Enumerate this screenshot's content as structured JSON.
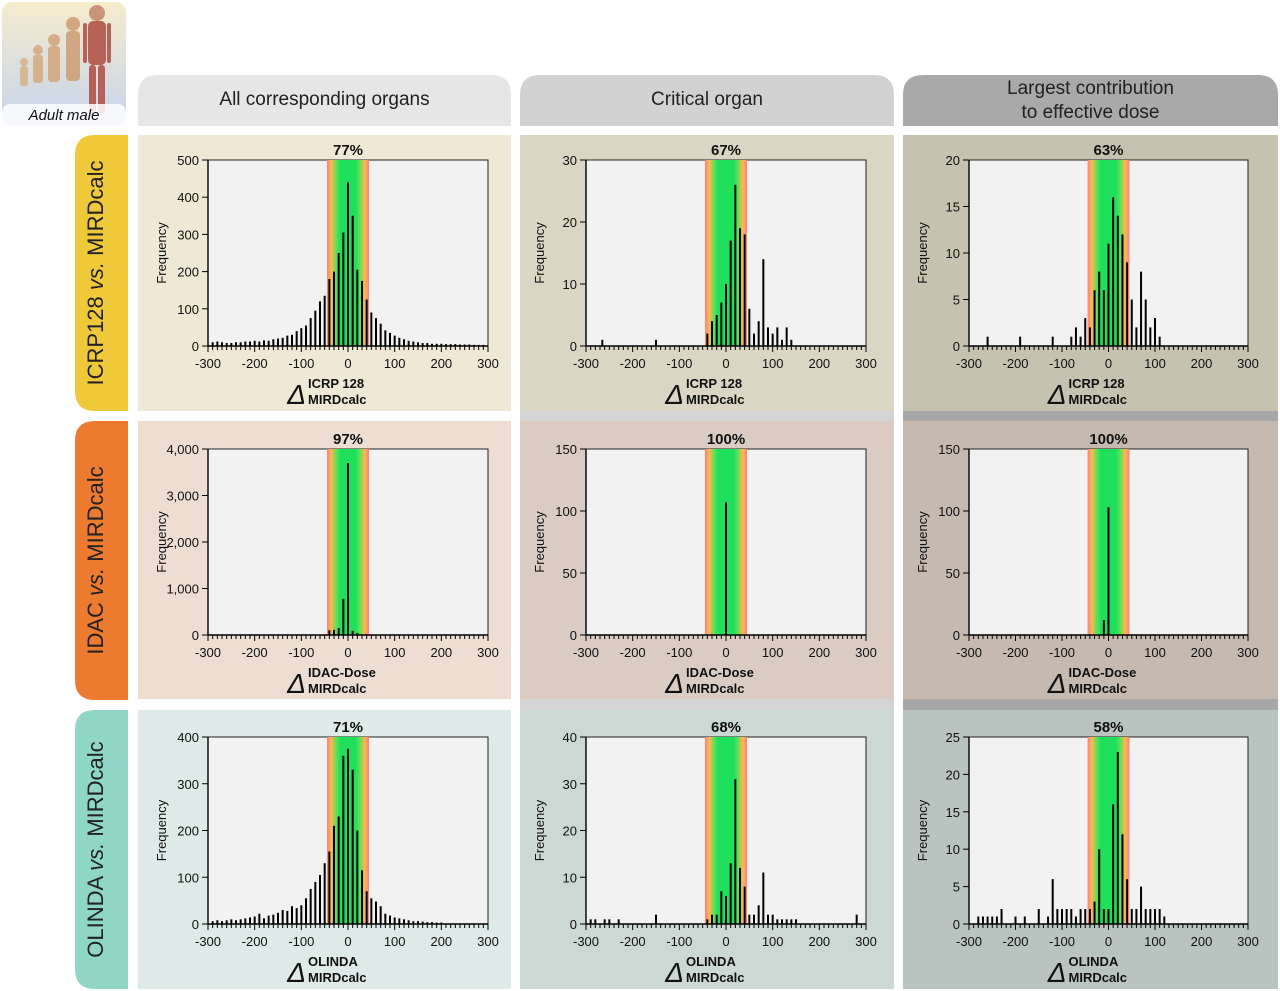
{
  "badge": {
    "label": "Adult male"
  },
  "column_headers": [
    [
      "All corresponding organs"
    ],
    [
      "Critical organ"
    ],
    [
      "Largest contribution",
      "to effective dose"
    ]
  ],
  "row_headers": [
    {
      "pre": "ICRP128 ",
      "italic": "vs.",
      "post": " MIRDcalc"
    },
    {
      "pre": "IDAC ",
      "italic": "vs.",
      "post": " MIRDcalc"
    },
    {
      "pre": "OLINDA ",
      "italic": "vs.",
      "post": " MIRDcalc"
    }
  ],
  "colors": {
    "row_headers": [
      "#f0c93a",
      "#ec7a2f",
      "#8fd6c6"
    ],
    "col_headers": [
      "#e6e6e6",
      "#d2d2d2",
      "#a9a9a9"
    ],
    "band_green": "#1fe05b",
    "band_red": "#ff6b6b",
    "plot_bg": "#f2f2f2"
  },
  "chart_data": [
    {
      "type": "bar",
      "row": 0,
      "col": 0,
      "percentage": "77%",
      "ylabel": "Frequency",
      "xlabel": "Δ",
      "x_superscript": "ICRP 128",
      "x_subscript": "MIRDcalc",
      "xlim": [
        -300,
        300
      ],
      "ylim": [
        0,
        500
      ],
      "yticks": [
        "0",
        "100",
        "200",
        "300",
        "400",
        "500"
      ],
      "xticks": [
        "-300",
        "-200",
        "-100",
        "0",
        "100",
        "200",
        "300"
      ],
      "x": [
        -290,
        -280,
        -270,
        -260,
        -250,
        -240,
        -230,
        -220,
        -210,
        -200,
        -190,
        -180,
        -170,
        -160,
        -150,
        -140,
        -130,
        -120,
        -110,
        -100,
        -90,
        -80,
        -70,
        -60,
        -50,
        -40,
        -30,
        -20,
        -10,
        0,
        10,
        20,
        30,
        40,
        50,
        60,
        70,
        80,
        90,
        100,
        110,
        120,
        130,
        140,
        150,
        160,
        170,
        180,
        190,
        200,
        210,
        220,
        230,
        240,
        250,
        260,
        270,
        280,
        290
      ],
      "values": [
        10,
        12,
        10,
        8,
        8,
        10,
        10,
        12,
        12,
        14,
        12,
        15,
        14,
        18,
        20,
        22,
        28,
        30,
        40,
        48,
        55,
        75,
        95,
        120,
        135,
        180,
        200,
        250,
        305,
        440,
        350,
        205,
        175,
        125,
        90,
        75,
        60,
        42,
        35,
        28,
        22,
        18,
        14,
        12,
        10,
        8,
        8,
        6,
        6,
        6,
        5,
        5,
        5,
        4,
        4,
        4,
        3,
        3,
        3
      ]
    },
    {
      "type": "bar",
      "row": 0,
      "col": 1,
      "percentage": "67%",
      "ylabel": "Frequency",
      "xlabel": "Δ",
      "x_superscript": "ICRP 128",
      "x_subscript": "MIRDcalc",
      "xlim": [
        -300,
        300
      ],
      "ylim": [
        0,
        30
      ],
      "yticks": [
        "0",
        "10",
        "20",
        "30"
      ],
      "xticks": [
        "-300",
        "-200",
        "-100",
        "0",
        "100",
        "200",
        "300"
      ],
      "x": [
        -265,
        -150,
        -40,
        -30,
        -20,
        -10,
        0,
        10,
        20,
        30,
        40,
        50,
        60,
        70,
        80,
        90,
        100,
        110,
        120,
        130,
        140,
        150,
        160,
        170,
        180,
        190,
        200,
        210,
        220,
        230,
        240,
        250,
        260,
        270,
        280
      ],
      "values": [
        1,
        1,
        2,
        4,
        5,
        7,
        10,
        17,
        26,
        19,
        18,
        6,
        2,
        4,
        14,
        3,
        2,
        3,
        1,
        3,
        1,
        0,
        0,
        0,
        0,
        0,
        0,
        0,
        0,
        0,
        0,
        0,
        0,
        0,
        0
      ]
    },
    {
      "type": "bar",
      "row": 0,
      "col": 2,
      "percentage": "63%",
      "ylabel": "Frequency",
      "xlabel": "Δ",
      "x_superscript": "ICRP 128",
      "x_subscript": "MIRDcalc",
      "xlim": [
        -300,
        300
      ],
      "ylim": [
        0,
        20
      ],
      "yticks": [
        "0",
        "5",
        "10",
        "15",
        "20"
      ],
      "xticks": [
        "-300",
        "-200",
        "-100",
        "0",
        "100",
        "200",
        "300"
      ],
      "x": [
        -260,
        -190,
        -120,
        -80,
        -70,
        -60,
        -50,
        -40,
        -30,
        -20,
        -10,
        0,
        10,
        20,
        30,
        40,
        50,
        60,
        70,
        80,
        90,
        100,
        110,
        120
      ],
      "values": [
        1,
        1,
        1,
        1,
        2,
        1,
        3,
        2,
        6,
        8,
        6,
        11,
        16,
        14,
        12,
        9,
        5,
        2,
        8,
        5,
        2,
        3,
        1,
        0
      ]
    },
    {
      "type": "bar",
      "row": 1,
      "col": 0,
      "percentage": "97%",
      "ylabel": "Frequency",
      "xlabel": "Δ",
      "x_superscript": "IDAC-Dose",
      "x_subscript": "MIRDcalc",
      "xlim": [
        -300,
        300
      ],
      "ylim": [
        0,
        4000
      ],
      "yticks": [
        "0",
        "1,000",
        "2,000",
        "3,000",
        "4,000"
      ],
      "xticks": [
        "-300",
        "-200",
        "-100",
        "0",
        "100",
        "200",
        "300"
      ],
      "x": [
        -40,
        -30,
        -20,
        -10,
        0,
        10,
        20
      ],
      "values": [
        100,
        110,
        150,
        780,
        3700,
        90,
        40
      ]
    },
    {
      "type": "bar",
      "row": 1,
      "col": 1,
      "percentage": "100%",
      "ylabel": "Frequency",
      "xlabel": "Δ",
      "x_superscript": "IDAC-Dose",
      "x_subscript": "MIRDcalc",
      "xlim": [
        -300,
        300
      ],
      "ylim": [
        0,
        150
      ],
      "yticks": [
        "0",
        "50",
        "100",
        "150"
      ],
      "xticks": [
        "-300",
        "-200",
        "-100",
        "0",
        "100",
        "200",
        "300"
      ],
      "x": [
        0
      ],
      "values": [
        107
      ]
    },
    {
      "type": "bar",
      "row": 1,
      "col": 2,
      "percentage": "100%",
      "ylabel": "Frequency",
      "xlabel": "Δ",
      "x_superscript": "IDAC-Dose",
      "x_subscript": "MIRDcalc",
      "xlim": [
        -300,
        300
      ],
      "ylim": [
        0,
        150
      ],
      "yticks": [
        "0",
        "50",
        "100",
        "150"
      ],
      "xticks": [
        "-300",
        "-200",
        "-100",
        "0",
        "100",
        "200",
        "300"
      ],
      "x": [
        -10,
        0
      ],
      "values": [
        12,
        103
      ]
    },
    {
      "type": "bar",
      "row": 2,
      "col": 0,
      "percentage": "71%",
      "ylabel": "Frequency",
      "xlabel": "Δ",
      "x_superscript": "OLINDA",
      "x_subscript": "MIRDcalc",
      "xlim": [
        -300,
        300
      ],
      "ylim": [
        0,
        400
      ],
      "yticks": [
        "0",
        "100",
        "200",
        "300",
        "400"
      ],
      "xticks": [
        "-300",
        "-200",
        "-100",
        "0",
        "100",
        "200",
        "300"
      ],
      "x": [
        -290,
        -280,
        -270,
        -260,
        -250,
        -240,
        -230,
        -220,
        -210,
        -200,
        -190,
        -180,
        -170,
        -160,
        -150,
        -140,
        -130,
        -120,
        -110,
        -100,
        -90,
        -80,
        -70,
        -60,
        -50,
        -40,
        -30,
        -20,
        -10,
        0,
        10,
        20,
        30,
        40,
        50,
        60,
        70,
        80,
        90,
        100,
        110,
        120,
        130,
        140,
        150,
        160,
        170,
        180,
        190,
        200
      ],
      "values": [
        6,
        8,
        6,
        8,
        10,
        8,
        10,
        12,
        14,
        16,
        22,
        12,
        18,
        20,
        24,
        30,
        28,
        38,
        34,
        40,
        55,
        75,
        90,
        105,
        130,
        155,
        210,
        230,
        360,
        375,
        330,
        200,
        115,
        70,
        55,
        48,
        38,
        22,
        18,
        14,
        12,
        10,
        8,
        6,
        6,
        5,
        4,
        4,
        3,
        3
      ]
    },
    {
      "type": "bar",
      "row": 2,
      "col": 1,
      "percentage": "68%",
      "ylabel": "Frequency",
      "xlabel": "Δ",
      "x_superscript": "OLINDA",
      "x_subscript": "MIRDcalc",
      "xlim": [
        -300,
        300
      ],
      "ylim": [
        0,
        40
      ],
      "yticks": [
        "0",
        "10",
        "20",
        "30",
        "40"
      ],
      "xticks": [
        "-300",
        "-200",
        "-100",
        "0",
        "100",
        "200",
        "300"
      ],
      "x": [
        -290,
        -280,
        -260,
        -250,
        -230,
        -150,
        -40,
        -30,
        -20,
        -10,
        0,
        10,
        20,
        30,
        40,
        50,
        60,
        70,
        80,
        90,
        100,
        110,
        120,
        130,
        140,
        150,
        280
      ],
      "values": [
        1,
        1,
        1,
        1,
        1,
        2,
        1,
        2,
        2,
        7,
        6,
        13,
        31,
        12,
        8,
        2,
        2,
        4,
        11,
        2,
        2,
        1,
        1,
        1,
        1,
        1,
        2
      ]
    },
    {
      "type": "bar",
      "row": 2,
      "col": 2,
      "percentage": "58%",
      "ylabel": "Frequency",
      "xlabel": "Δ",
      "x_superscript": "OLINDA",
      "x_subscript": "MIRDcalc",
      "xlim": [
        -300,
        300
      ],
      "ylim": [
        0,
        25
      ],
      "yticks": [
        "0",
        "5",
        "10",
        "15",
        "20",
        "25"
      ],
      "xticks": [
        "-300",
        "-200",
        "-100",
        "0",
        "100",
        "200",
        "300"
      ],
      "x": [
        -280,
        -270,
        -260,
        -250,
        -240,
        -230,
        -200,
        -180,
        -150,
        -130,
        -120,
        -110,
        -100,
        -90,
        -80,
        -70,
        -60,
        -50,
        -40,
        -30,
        -20,
        -10,
        0,
        10,
        20,
        30,
        40,
        50,
        60,
        70,
        80,
        90,
        100,
        110,
        120
      ],
      "values": [
        1,
        1,
        1,
        1,
        1,
        2,
        1,
        1,
        2,
        1,
        6,
        2,
        2,
        2,
        2,
        1,
        2,
        2,
        2,
        3,
        10,
        2,
        2,
        16,
        23,
        12,
        6,
        2,
        2,
        5,
        2,
        2,
        2,
        2,
        1
      ]
    }
  ]
}
